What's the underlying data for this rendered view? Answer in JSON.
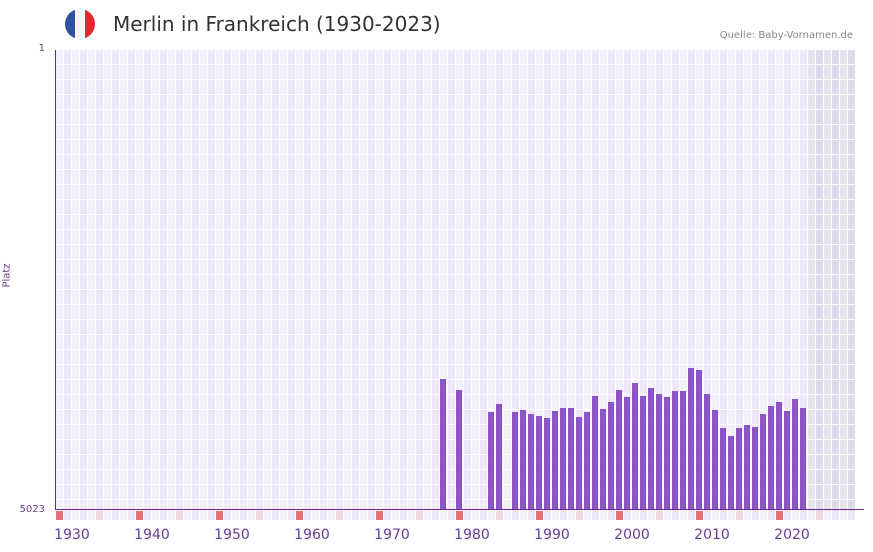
{
  "header": {
    "title": "Merlin in Frankreich (1930-2023)",
    "source": "Quelle: Baby-Vornamen.de",
    "flag_colors": [
      "#2f4fa0",
      "#f4f4f6",
      "#e8262f"
    ]
  },
  "colors": {
    "bar": "#8c55c6",
    "axis": "#6a2d91",
    "grid_a": "#f3effb",
    "grid_b": "#ede7f7",
    "future_a": "#e6e2ee",
    "future_b": "#e0dbea",
    "marker_decade": "#e5717a",
    "marker_half": "#f4d6de"
  },
  "chart_data": {
    "type": "bar",
    "title": "Merlin in Frankreich (1930-2023)",
    "xlabel": "",
    "ylabel": "Platz",
    "y_axis": {
      "top_label": "1",
      "bottom_label": "5023",
      "inverted": true,
      "range": [
        1,
        5023
      ]
    },
    "x_range": [
      1930,
      2029
    ],
    "x_ticks": [
      "1930",
      "1940",
      "1950",
      "1960",
      "1970",
      "1980",
      "1990",
      "2000",
      "2010",
      "2020"
    ],
    "future_shaded_from": 2024,
    "grid": true,
    "categories": [
      1978,
      1980,
      1984,
      1985,
      1987,
      1988,
      1989,
      1990,
      1991,
      1992,
      1993,
      1994,
      1995,
      1996,
      1997,
      1998,
      1999,
      2000,
      2001,
      2002,
      2003,
      2004,
      2005,
      2006,
      2007,
      2008,
      2009,
      2010,
      2011,
      2012,
      2013,
      2014,
      2015,
      2016,
      2017,
      2018,
      2019,
      2020,
      2021,
      2022,
      2023
    ],
    "values": [
      3593,
      3713,
      3953,
      3866,
      3953,
      3931,
      3975,
      3997,
      4019,
      3942,
      3909,
      3909,
      4008,
      3953,
      3778,
      3920,
      3844,
      3713,
      3789,
      3636,
      3778,
      3691,
      3757,
      3789,
      3724,
      3724,
      3473,
      3495,
      3757,
      3931,
      4128,
      4215,
      4128,
      4095,
      4117,
      3975,
      3888,
      3844,
      3942,
      3811,
      3909
    ]
  }
}
